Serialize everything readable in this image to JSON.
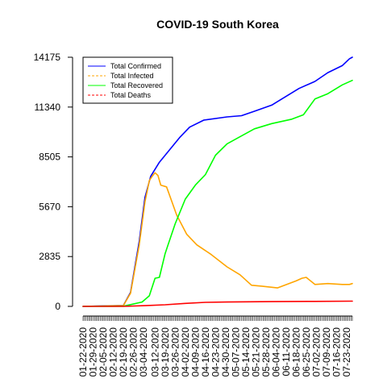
{
  "chart_data": {
    "type": "line",
    "title": "COVID-19 South Korea",
    "xlabel": "",
    "ylabel": "",
    "ylim": [
      0,
      14175
    ],
    "y_ticks": [
      0,
      2835,
      5670,
      8505,
      11340,
      14175
    ],
    "y_tick_labels": [
      "0",
      "2835",
      "5670",
      "8505",
      "11340",
      "14175"
    ],
    "x_tick_labels": [
      "01-22-2020",
      "01-29-2020",
      "02-05-2020",
      "02-12-2020",
      "02-19-2020",
      "02-26-2020",
      "03-04-2020",
      "03-12-2020",
      "03-19-2020",
      "03-26-2020",
      "04-02-2020",
      "04-09-2020",
      "04-16-2020",
      "04-23-2020",
      "04-30-2020",
      "05-07-2020",
      "05-14-2020",
      "05-21-2020",
      "05-28-2020",
      "06-04-2020",
      "06-11-2020",
      "06-18-2020",
      "06-25-2020",
      "07-02-2020",
      "07-09-2020",
      "07-16-2020",
      "07-23-2020"
    ],
    "legend_position": "top-left",
    "grid": false,
    "series": [
      {
        "name": "Total Confirmed",
        "color": "#0000ff",
        "dash": "solid",
        "x": [
          "01-22-2020",
          "02-19-2020",
          "02-24-2020",
          "03-01-2020",
          "03-05-2020",
          "03-09-2020",
          "03-15-2020",
          "03-22-2020",
          "03-29-2020",
          "04-05-2020",
          "04-15-2020",
          "05-01-2020",
          "05-11-2020",
          "05-20-2020",
          "06-01-2020",
          "06-10-2020",
          "06-20-2020",
          "07-01-2020",
          "07-10-2020",
          "07-20-2020",
          "07-25-2020",
          "07-27-2020"
        ],
        "y": [
          1,
          50,
          800,
          3700,
          6200,
          7400,
          8200,
          8900,
          9600,
          10200,
          10600,
          10780,
          10850,
          11100,
          11450,
          11900,
          12400,
          12800,
          13300,
          13700,
          14090,
          14175
        ]
      },
      {
        "name": "Total Infected",
        "color": "#ffa500",
        "dash": "dashed",
        "x": [
          "01-22-2020",
          "02-19-2020",
          "02-24-2020",
          "03-01-2020",
          "03-05-2020",
          "03-08-2020",
          "03-10-2020",
          "03-12-2020",
          "03-14-2020",
          "03-16-2020",
          "03-20-2020",
          "03-27-2020",
          "04-03-2020",
          "04-10-2020",
          "04-20-2020",
          "05-01-2020",
          "05-10-2020",
          "05-18-2020",
          "05-25-2020",
          "06-05-2020",
          "06-18-2020",
          "06-22-2020",
          "06-25-2020",
          "07-01-2020",
          "07-10-2020",
          "07-20-2020",
          "07-25-2020",
          "07-27-2020"
        ],
        "y": [
          1,
          45,
          750,
          3500,
          5950,
          7150,
          7400,
          7600,
          7450,
          6900,
          6800,
          5200,
          4100,
          3500,
          2950,
          2250,
          1800,
          1200,
          1150,
          1050,
          1450,
          1600,
          1650,
          1250,
          1300,
          1250,
          1250,
          1300
        ]
      },
      {
        "name": "Total Recovered",
        "color": "#00ff00",
        "dash": "solid",
        "x": [
          "01-22-2020",
          "02-19-2020",
          "03-03-2020",
          "03-08-2020",
          "03-12-2020",
          "03-15-2020",
          "03-19-2020",
          "03-21-2020",
          "03-26-2020",
          "04-02-2020",
          "04-09-2020",
          "04-16-2020",
          "04-23-2020",
          "05-01-2020",
          "05-10-2020",
          "05-20-2020",
          "06-01-2020",
          "06-15-2020",
          "06-23-2020",
          "07-01-2020",
          "07-10-2020",
          "07-20-2020",
          "07-27-2020"
        ],
        "y": [
          0,
          10,
          250,
          600,
          1600,
          1650,
          3000,
          3500,
          4700,
          6100,
          6900,
          7500,
          8600,
          9250,
          9650,
          10100,
          10400,
          10650,
          10900,
          11800,
          12100,
          12600,
          12860
        ]
      },
      {
        "name": "Total Deaths",
        "color": "#ff0000",
        "dash": "dashed",
        "x": [
          "01-22-2020",
          "02-19-2020",
          "03-05-2020",
          "03-19-2020",
          "04-02-2020",
          "04-16-2020",
          "05-01-2020",
          "06-01-2020",
          "07-01-2020",
          "07-27-2020"
        ],
        "y": [
          0,
          1,
          40,
          90,
          170,
          230,
          250,
          272,
          285,
          300
        ]
      }
    ]
  }
}
